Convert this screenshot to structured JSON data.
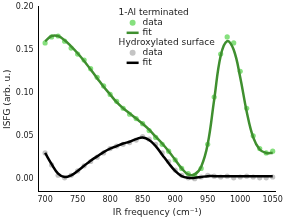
{
  "chart_data": {
    "type": "scatter",
    "x_label": "IR frequency (cm⁻¹)",
    "y_label": "ISFG (arb. u.)",
    "xlim": [
      690,
      1055
    ],
    "xticks": [
      700,
      750,
      800,
      850,
      900,
      950,
      1000,
      1050
    ],
    "ylim": [
      -0.015,
      0.2
    ],
    "yticks": [
      {
        "value": 0,
        "label": "0.00"
      },
      {
        "value": 0.05,
        "label": "0.05"
      },
      {
        "value": 0.1,
        "label": "0.10"
      },
      {
        "value": 0.15,
        "label": "0.15"
      },
      {
        "value": 0.2,
        "label": "0.20"
      }
    ],
    "grid": false,
    "legend": "top",
    "series": [
      {
        "name": "data",
        "group": "1-Al terminated",
        "type": "scatter",
        "marker": "circle",
        "color": "#86e07e",
        "x": [
          700,
          710,
          720,
          730,
          740,
          750,
          760,
          770,
          780,
          790,
          800,
          810,
          820,
          830,
          840,
          850,
          860,
          870,
          880,
          890,
          900,
          910,
          920,
          930,
          940,
          950,
          960,
          970,
          980,
          990,
          1000,
          1010,
          1020,
          1030,
          1040,
          1050
        ],
        "values": [
          0.158,
          0.165,
          0.166,
          0.16,
          0.152,
          0.145,
          0.138,
          0.128,
          0.118,
          0.108,
          0.098,
          0.09,
          0.082,
          0.075,
          0.07,
          0.064,
          0.056,
          0.048,
          0.04,
          0.032,
          0.022,
          0.012,
          0.006,
          0.004,
          0.012,
          0.04,
          0.095,
          0.145,
          0.165,
          0.158,
          0.125,
          0.082,
          0.05,
          0.035,
          0.03,
          0.032
        ]
      },
      {
        "name": "fit",
        "group": "1-Al terminated",
        "type": "line",
        "line_style": "solid",
        "color": "#3f8f2f",
        "x": [
          700,
          710,
          720,
          730,
          740,
          750,
          760,
          770,
          780,
          790,
          800,
          810,
          820,
          830,
          840,
          850,
          860,
          870,
          880,
          890,
          900,
          910,
          920,
          930,
          940,
          950,
          960,
          970,
          980,
          990,
          1000,
          1010,
          1020,
          1030,
          1040,
          1050
        ],
        "values": [
          0.16,
          0.166,
          0.166,
          0.161,
          0.154,
          0.146,
          0.137,
          0.127,
          0.117,
          0.107,
          0.098,
          0.089,
          0.082,
          0.076,
          0.07,
          0.064,
          0.057,
          0.049,
          0.041,
          0.032,
          0.022,
          0.012,
          0.005,
          0.005,
          0.014,
          0.04,
          0.092,
          0.143,
          0.16,
          0.15,
          0.118,
          0.078,
          0.048,
          0.034,
          0.03,
          0.03
        ]
      },
      {
        "name": "data",
        "group": "Hydroxylated surface",
        "type": "scatter",
        "marker": "circle",
        "color": "#c4c4c4",
        "x": [
          700,
          710,
          720,
          730,
          740,
          750,
          760,
          770,
          780,
          790,
          800,
          810,
          820,
          830,
          840,
          850,
          860,
          870,
          880,
          890,
          900,
          910,
          920,
          930,
          940,
          950,
          960,
          970,
          980,
          990,
          1000,
          1010,
          1020,
          1030,
          1040,
          1050
        ],
        "values": [
          0.03,
          0.016,
          0.004,
          0.001,
          0.004,
          0.009,
          0.015,
          0.02,
          0.025,
          0.03,
          0.035,
          0.038,
          0.04,
          0.042,
          0.045,
          0.049,
          0.046,
          0.04,
          0.03,
          0.02,
          0.01,
          0.004,
          0.001,
          0.0,
          0.002,
          0.004,
          0.003,
          0.002,
          0.003,
          0.001,
          0.002,
          0.003,
          0.002,
          0.001,
          0.001,
          0.002
        ]
      },
      {
        "name": "fit",
        "group": "Hydroxylated surface",
        "type": "line",
        "line_style": "solid",
        "color": "#000000",
        "x": [
          700,
          710,
          720,
          730,
          740,
          750,
          760,
          770,
          780,
          790,
          800,
          810,
          820,
          830,
          840,
          850,
          860,
          870,
          880,
          890,
          900,
          910,
          920,
          930,
          940,
          950,
          960,
          970,
          980,
          990,
          1000,
          1010,
          1020,
          1030,
          1040,
          1050
        ],
        "values": [
          0.03,
          0.017,
          0.006,
          0.002,
          0.004,
          0.009,
          0.015,
          0.021,
          0.026,
          0.031,
          0.035,
          0.038,
          0.041,
          0.043,
          0.046,
          0.048,
          0.045,
          0.038,
          0.028,
          0.018,
          0.009,
          0.003,
          0.001,
          0.001,
          0.002,
          0.003,
          0.003,
          0.003,
          0.003,
          0.003,
          0.003,
          0.003,
          0.003,
          0.003,
          0.003,
          0.003
        ]
      }
    ]
  }
}
